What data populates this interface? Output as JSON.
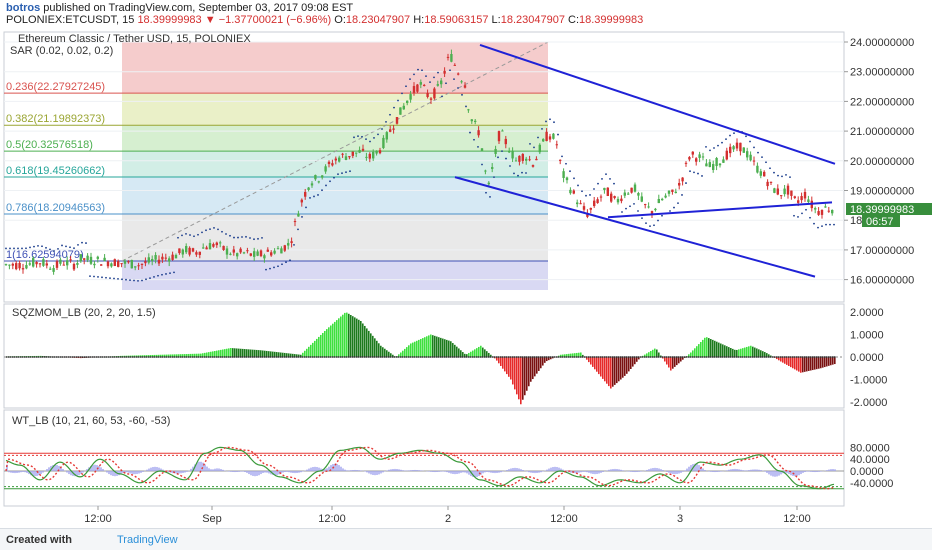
{
  "header": {
    "user": "botros",
    "published": " published on TradingView.com, September 03, 2017 09:08 EST",
    "symbol": "POLONIEX:ETCUSDT, 15",
    "last": "18.39999983",
    "change_arrow": "▼",
    "change": "−1.37700021 (−6.96%)",
    "o_label": "O:",
    "o": "18.23047907",
    "h_label": "H:",
    "h": "18.59063157",
    "l_label": "L:",
    "l": "18.23047907",
    "c_label": "C:",
    "c": "18.39999983"
  },
  "main_pane": {
    "title": "Ethereum Classic / Tether USD, 15, POLONIEX",
    "sar": "SAR (0.02, 0.02, 0.2)",
    "price_axis": [
      "24.00000000",
      "23.00000000",
      "22.00000000",
      "21.00000000",
      "20.00000000",
      "19.00000000",
      "18.000",
      "17.00000000",
      "16.00000000"
    ],
    "last_price_tag": "18.39999983",
    "countdown_tag": "06:57",
    "fib_levels": [
      {
        "label": "0.236(22.27927245)",
        "value": 22.27927245
      },
      {
        "label": "0.382(21.19892373)",
        "value": 21.19892373
      },
      {
        "label": "0.5(20.32576518)",
        "value": 20.32576518
      },
      {
        "label": "0.618(19.45260662)",
        "value": 19.45260662
      },
      {
        "label": "0.786(18.20946563)",
        "value": 18.20946563
      },
      {
        "label": "1(16.62594079)",
        "value": 16.62594079
      }
    ]
  },
  "sqz_pane": {
    "title": "SQZMOM_LB (20, 2, 20, 1.5)",
    "axis": [
      "2.0000",
      "1.0000",
      "0.0000",
      "-1.0000",
      "-2.0000"
    ]
  },
  "wt_pane": {
    "title": "WT_LB (10, 21, 60, 53, -60, -53)",
    "axis": [
      "80.0000",
      "40.0000",
      "0.0000",
      "-40.0000"
    ]
  },
  "time_axis": [
    "12:00",
    "Sep",
    "12:00",
    "2",
    "12:00",
    "3",
    "12:00"
  ],
  "footer": {
    "created": "Created with",
    "brand": "TradingView"
  },
  "colors": {
    "up": "#4caf50",
    "down": "#d32f2f",
    "trendline": "#1f22d6",
    "sqz_pos": "#3ee03e",
    "sqz_neg": "#e62a2a",
    "wt_green": "#3a9a3a",
    "wt_red": "#e53935"
  },
  "chart_data": {
    "type": "candlestick",
    "ylim": [
      15.6,
      24.2
    ],
    "price_path": [
      [
        0,
        16.5
      ],
      [
        25,
        16.5
      ],
      [
        40,
        16.6
      ],
      [
        55,
        16.4
      ],
      [
        62,
        16.6
      ],
      [
        75,
        16.5
      ],
      [
        80,
        16.7
      ],
      [
        110,
        16.6
      ],
      [
        140,
        16.5
      ],
      [
        160,
        16.7
      ],
      [
        175,
        16.8
      ],
      [
        185,
        17.0
      ],
      [
        195,
        16.9
      ],
      [
        205,
        17.1
      ],
      [
        215,
        17.2
      ],
      [
        225,
        17.0
      ],
      [
        235,
        16.85
      ],
      [
        245,
        16.9
      ],
      [
        255,
        16.8
      ],
      [
        268,
        16.9
      ],
      [
        278,
        17.0
      ],
      [
        290,
        17.2
      ],
      [
        300,
        18.5
      ],
      [
        310,
        19.3
      ],
      [
        318,
        19.4
      ],
      [
        328,
        19.8
      ],
      [
        338,
        20.1
      ],
      [
        350,
        20.2
      ],
      [
        360,
        20.3
      ],
      [
        370,
        20.1
      ],
      [
        380,
        20.4
      ],
      [
        390,
        21.0
      ],
      [
        400,
        21.6
      ],
      [
        410,
        22.2
      ],
      [
        420,
        22.6
      ],
      [
        430,
        22.1
      ],
      [
        440,
        22.5
      ],
      [
        450,
        23.6
      ],
      [
        458,
        23.0
      ],
      [
        465,
        22.6
      ],
      [
        470,
        21.5
      ],
      [
        480,
        20.9
      ],
      [
        488,
        19.0
      ],
      [
        494,
        20.0
      ],
      [
        500,
        21.0
      ],
      [
        508,
        20.5
      ],
      [
        516,
        20.0
      ],
      [
        524,
        20.2
      ],
      [
        534,
        19.9
      ],
      [
        540,
        20.4
      ],
      [
        548,
        20.9
      ],
      [
        556,
        20.7
      ],
      [
        562,
        19.6
      ],
      [
        570,
        19.1
      ],
      [
        580,
        18.5
      ],
      [
        588,
        18.2
      ],
      [
        596,
        18.6
      ],
      [
        606,
        19.0
      ],
      [
        616,
        18.6
      ],
      [
        624,
        18.9
      ],
      [
        634,
        19.1
      ],
      [
        644,
        18.5
      ],
      [
        652,
        18.3
      ],
      [
        662,
        18.7
      ],
      [
        672,
        18.9
      ],
      [
        680,
        19.2
      ],
      [
        690,
        20.2
      ],
      [
        700,
        20.1
      ],
      [
        710,
        19.8
      ],
      [
        720,
        20.0
      ],
      [
        730,
        20.3
      ],
      [
        740,
        20.5
      ],
      [
        748,
        20.2
      ],
      [
        756,
        19.8
      ],
      [
        764,
        19.5
      ],
      [
        772,
        19.1
      ],
      [
        780,
        18.9
      ],
      [
        788,
        19.0
      ],
      [
        796,
        18.6
      ],
      [
        806,
        18.9
      ],
      [
        812,
        18.5
      ],
      [
        818,
        18.3
      ],
      [
        826,
        18.4
      ]
    ],
    "trendlines": [
      {
        "from": [
          480,
          23.9
        ],
        "to": [
          835,
          19.9
        ]
      },
      {
        "from": [
          455,
          19.45
        ],
        "to": [
          815,
          16.1
        ]
      },
      {
        "from": [
          608,
          18.1
        ],
        "to": [
          832,
          18.6
        ]
      }
    ],
    "sqz_series": [
      [
        0,
        0.02
      ],
      [
        40,
        0.05
      ],
      [
        80,
        -0.05
      ],
      [
        120,
        0.05
      ],
      [
        160,
        0.1
      ],
      [
        200,
        0.15
      ],
      [
        230,
        0.4
      ],
      [
        260,
        0.3
      ],
      [
        300,
        0.1
      ],
      [
        325,
        1.2
      ],
      [
        345,
        2.0
      ],
      [
        360,
        1.6
      ],
      [
        380,
        0.5
      ],
      [
        395,
        0.0
      ],
      [
        410,
        0.6
      ],
      [
        430,
        1.0
      ],
      [
        450,
        0.7
      ],
      [
        465,
        0.1
      ],
      [
        480,
        0.5
      ],
      [
        495,
        -0.1
      ],
      [
        510,
        -1.0
      ],
      [
        520,
        -2.1
      ],
      [
        530,
        -1.1
      ],
      [
        545,
        -0.2
      ],
      [
        560,
        0.1
      ],
      [
        580,
        0.2
      ],
      [
        595,
        -0.6
      ],
      [
        610,
        -1.4
      ],
      [
        625,
        -0.8
      ],
      [
        640,
        0.0
      ],
      [
        655,
        0.4
      ],
      [
        670,
        -0.6
      ],
      [
        690,
        0.2
      ],
      [
        705,
        0.9
      ],
      [
        720,
        0.6
      ],
      [
        735,
        0.3
      ],
      [
        750,
        0.5
      ],
      [
        765,
        0.2
      ],
      [
        780,
        -0.2
      ],
      [
        800,
        -0.7
      ],
      [
        820,
        -0.5
      ],
      [
        835,
        -0.3
      ]
    ],
    "wt1": [
      [
        0,
        40
      ],
      [
        20,
        20
      ],
      [
        40,
        -30
      ],
      [
        60,
        30
      ],
      [
        80,
        -20
      ],
      [
        100,
        40
      ],
      [
        120,
        -10
      ],
      [
        140,
        -40
      ],
      [
        160,
        0
      ],
      [
        185,
        -30
      ],
      [
        205,
        60
      ],
      [
        220,
        80
      ],
      [
        240,
        70
      ],
      [
        260,
        20
      ],
      [
        280,
        -20
      ],
      [
        300,
        -40
      ],
      [
        320,
        0
      ],
      [
        340,
        70
      ],
      [
        360,
        80
      ],
      [
        380,
        40
      ],
      [
        400,
        60
      ],
      [
        420,
        70
      ],
      [
        440,
        60
      ],
      [
        460,
        30
      ],
      [
        480,
        -30
      ],
      [
        500,
        -50
      ],
      [
        520,
        -20
      ],
      [
        540,
        -40
      ],
      [
        560,
        0
      ],
      [
        580,
        -20
      ],
      [
        600,
        -50
      ],
      [
        620,
        -30
      ],
      [
        640,
        -40
      ],
      [
        660,
        -10
      ],
      [
        680,
        -40
      ],
      [
        700,
        30
      ],
      [
        720,
        20
      ],
      [
        740,
        40
      ],
      [
        760,
        55
      ],
      [
        780,
        0
      ],
      [
        800,
        -50
      ],
      [
        820,
        -60
      ],
      [
        835,
        -45
      ]
    ]
  }
}
